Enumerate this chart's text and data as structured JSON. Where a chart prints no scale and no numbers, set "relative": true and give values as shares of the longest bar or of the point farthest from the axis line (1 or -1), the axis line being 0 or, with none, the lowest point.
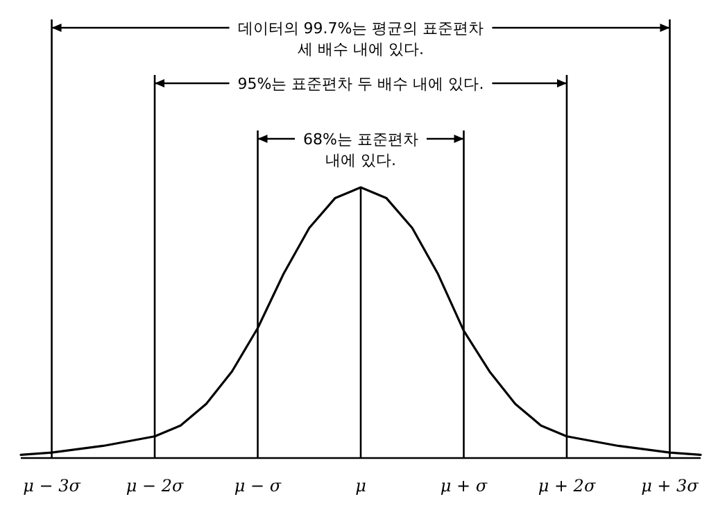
{
  "chart_data": {
    "type": "line",
    "relative": true,
    "x": [
      -3.3,
      -3,
      -2.5,
      -2,
      -1.75,
      -1.5,
      -1.25,
      -1,
      -0.75,
      -0.5,
      -0.25,
      0,
      0.25,
      0.5,
      0.75,
      1,
      1.25,
      1.5,
      1.75,
      2,
      2.5,
      3,
      3.3
    ],
    "series": [
      {
        "color": "#000000",
        "values": [
          0.012,
          0.02,
          0.045,
          0.08,
          0.12,
          0.2,
          0.32,
          0.48,
          0.68,
          0.85,
          0.96,
          1,
          0.96,
          0.85,
          0.68,
          0.47,
          0.32,
          0.2,
          0.12,
          0.08,
          0.045,
          0.02,
          0.012
        ]
      }
    ],
    "xlim": [
      -3.3,
      3.3
    ],
    "xticks": [
      {
        "value": -3,
        "label": "μ − 3σ"
      },
      {
        "value": -2,
        "label": "μ − 2σ"
      },
      {
        "value": -1,
        "label": "μ − σ"
      },
      {
        "value": 0,
        "label": "μ"
      },
      {
        "value": 1,
        "label": "μ + σ"
      },
      {
        "value": 2,
        "label": "μ + 2σ"
      },
      {
        "value": 3,
        "label": "μ + 3σ"
      }
    ],
    "ref_lines": [
      {
        "axis": "x",
        "value": -3
      },
      {
        "axis": "x",
        "value": 3
      },
      {
        "axis": "x",
        "value": -2
      },
      {
        "axis": "x",
        "value": 2
      },
      {
        "axis": "x",
        "value": -1
      },
      {
        "axis": "x",
        "value": 1
      },
      {
        "axis": "x",
        "value": 0
      }
    ],
    "annotations": [
      "데이터의 99.7%는 평균의 표준편차\n세 배수 내에 있다.",
      "95%는 표준편차 두 배수 내에 있다.",
      "68%는 표준편차\n내에 있다."
    ]
  }
}
